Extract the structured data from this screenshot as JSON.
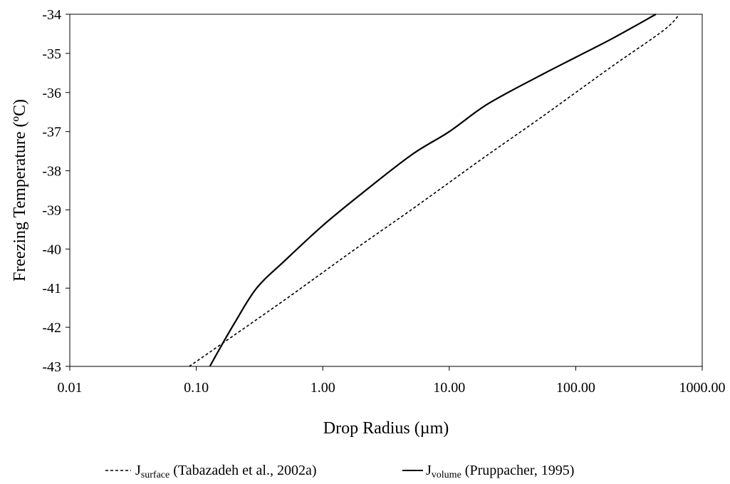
{
  "chart_data": {
    "type": "line",
    "xlabel": "Drop Radius (µm)",
    "ylabel": "Freezing Temperature (ºC)",
    "xscale": "log",
    "xlim": [
      0.01,
      1000
    ],
    "ylim": [
      -43,
      -34
    ],
    "x_ticks": [
      0.01,
      0.1,
      1,
      10,
      100,
      1000
    ],
    "x_tick_labels": [
      "0.01",
      "0.10",
      "1.00",
      "10.00",
      "100.00",
      "1000.00"
    ],
    "y_ticks": [
      -34,
      -35,
      -36,
      -37,
      -38,
      -39,
      -40,
      -41,
      -42,
      -43
    ],
    "y_tick_labels": [
      "-34",
      "-35",
      "-36",
      "-37",
      "-38",
      "-39",
      "-40",
      "-41",
      "-42",
      "-43"
    ],
    "grid": false,
    "legend_position": "bottom",
    "series": [
      {
        "name_main": "J",
        "name_sub": "surface",
        "name_rest": " (Tabazadeh et al., 2002a)",
        "style": "dashed",
        "color": "#000000",
        "x": [
          0.088,
          0.2,
          0.5,
          1,
          2,
          5,
          10,
          20,
          50,
          100,
          200,
          500,
          660
        ],
        "y": [
          -43.0,
          -42.2,
          -41.3,
          -40.6,
          -39.9,
          -39.0,
          -38.3,
          -37.6,
          -36.7,
          -36.0,
          -35.3,
          -34.4,
          -34.0
        ]
      },
      {
        "name_main": "J",
        "name_sub": "volume",
        "name_rest": " (Pruppacher, 1995)",
        "style": "solid",
        "color": "#000000",
        "x": [
          0.128,
          0.15,
          0.2,
          0.3,
          0.5,
          1,
          2,
          5,
          10,
          20,
          50,
          100,
          200,
          430
        ],
        "y": [
          -43.0,
          -42.6,
          -41.9,
          -41.0,
          -40.3,
          -39.4,
          -38.6,
          -37.6,
          -37.0,
          -36.3,
          -35.6,
          -35.1,
          -34.6,
          -34.0
        ]
      }
    ]
  }
}
